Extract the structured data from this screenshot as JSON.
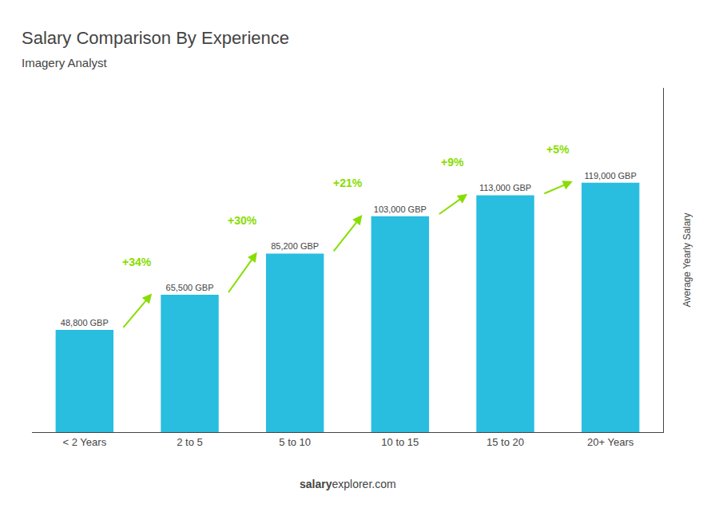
{
  "chart_data": {
    "type": "bar",
    "title": "Salary Comparison By Experience",
    "subtitle": "Imagery Analyst",
    "categories": [
      "< 2 Years",
      "2 to 5",
      "5 to 10",
      "10 to 15",
      "15 to 20",
      "20+ Years"
    ],
    "values": [
      48800,
      65500,
      85200,
      103000,
      113000,
      119000
    ],
    "value_labels": [
      "48,800 GBP",
      "65,500 GBP",
      "85,200 GBP",
      "103,000 GBP",
      "113,000 GBP",
      "119,000 GBP"
    ],
    "data_labels": true,
    "color": "#29bde0",
    "ylabel": "Average Yearly Salary",
    "ylim": [
      0,
      164220
    ],
    "tick_labels": "x",
    "grid": false,
    "annotations": [
      null,
      {
        "text": "+34%",
        "color": "#88dd00"
      },
      {
        "text": "+30%",
        "color": "#88dd00"
      },
      {
        "text": "+21%",
        "color": "#88dd00"
      },
      {
        "text": "+9%",
        "color": "#88dd00"
      },
      {
        "text": "+5%",
        "color": "#88dd00"
      }
    ],
    "footer_bold": "salary",
    "footer_normal": "explorer.com"
  }
}
